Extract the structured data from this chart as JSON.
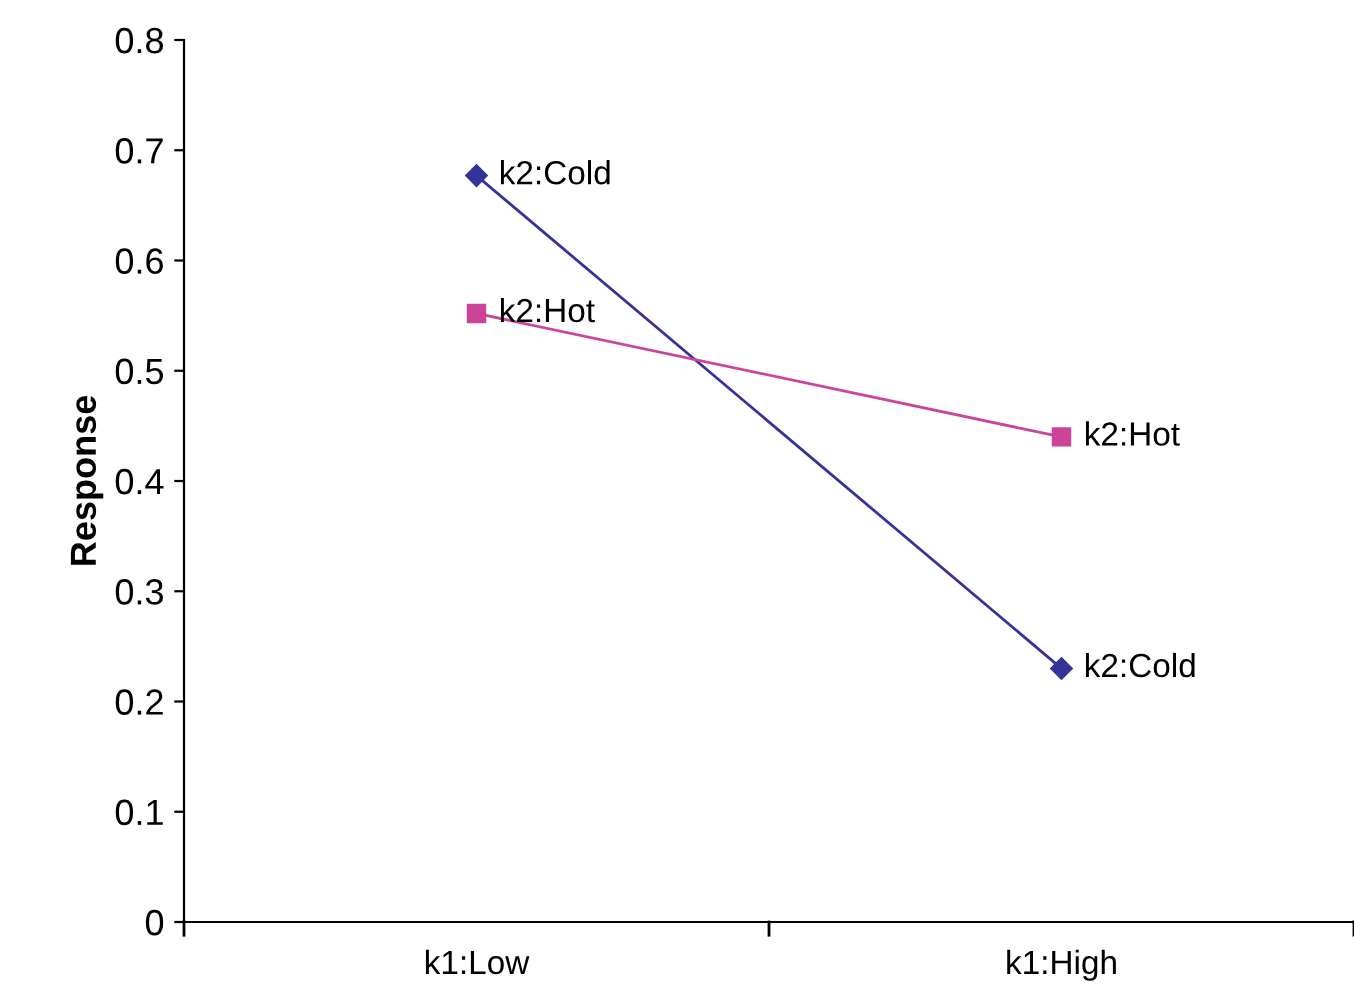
{
  "chart_data": {
    "type": "line",
    "ylabel": "Response",
    "categories": [
      "k1:Low",
      "k1:High"
    ],
    "series": [
      {
        "name": "k2:Cold",
        "color": "#333399",
        "marker": "diamond",
        "values": [
          0.677,
          0.23
        ]
      },
      {
        "name": "k2:Hot",
        "color": "#cc4499",
        "marker": "square",
        "values": [
          0.552,
          0.44
        ]
      }
    ],
    "ylim": [
      0,
      0.8
    ],
    "yticks": [
      0,
      0.1,
      0.2,
      0.3,
      0.4,
      0.5,
      0.6,
      0.7,
      0.8
    ],
    "grid": false,
    "legend": false,
    "line_style": "solid"
  }
}
